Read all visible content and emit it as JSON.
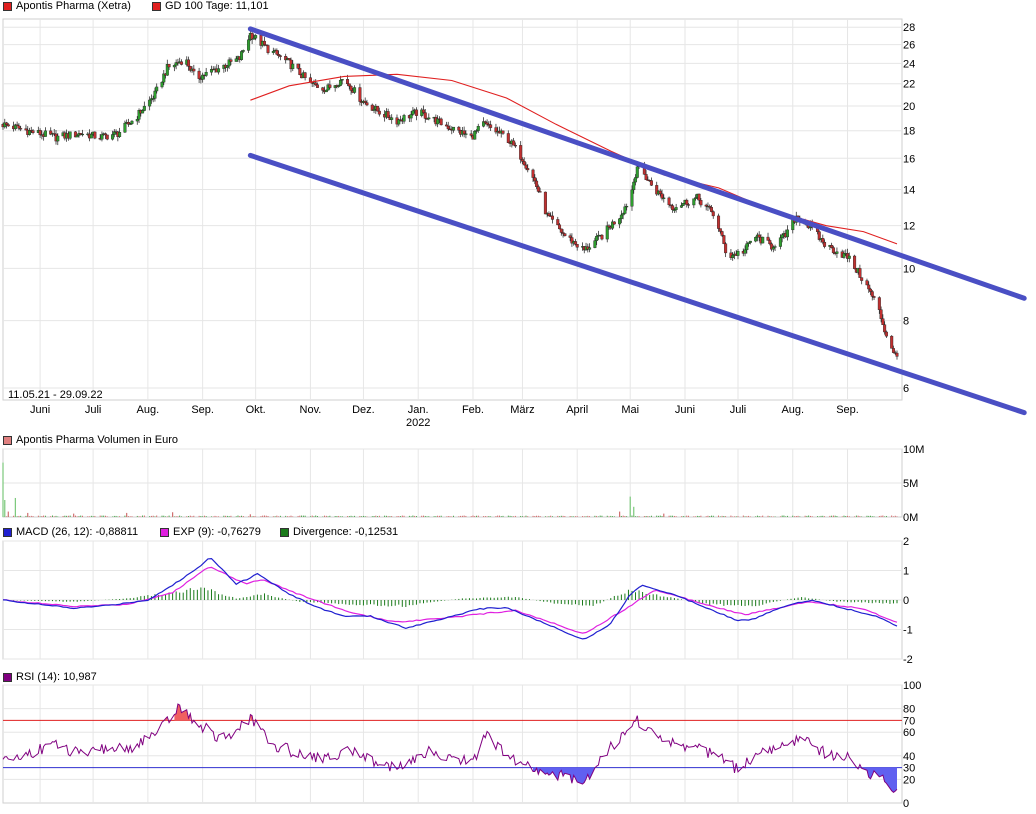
{
  "chart_data": [
    {
      "type": "candlestick",
      "panel": "price",
      "legend": [
        {
          "name": "Apontis Pharma (Xetra)",
          "color": "#e02020"
        },
        {
          "name": "GD 100 Tage: 11,101",
          "color": "#e02020"
        }
      ],
      "date_range_label": "11.05.21 - 29.09.22",
      "x_labels": [
        "Juni",
        "Juli",
        "Aug.",
        "Sep.",
        "Okt.",
        "Nov.",
        "Dez.",
        "Jan.",
        "Feb.",
        "März",
        "April",
        "Mai",
        "Juni",
        "Juli",
        "Aug.",
        "Sep."
      ],
      "year_label": "2022",
      "y_scale": "log",
      "y_ticks": [
        28,
        26,
        24,
        22,
        20,
        18,
        16,
        14,
        12,
        10,
        8,
        6
      ],
      "ylim": [
        5.7,
        29
      ],
      "close_path": [
        [
          "2021-05-11",
          18.5
        ],
        [
          "2021-05-25",
          18.0
        ],
        [
          "2021-06-10",
          17.5
        ],
        [
          "2021-06-25",
          17.8
        ],
        [
          "2021-07-05",
          17.5
        ],
        [
          "2021-07-15",
          17.8
        ],
        [
          "2021-07-25",
          19.0
        ],
        [
          "2021-08-05",
          21.0
        ],
        [
          "2021-08-12",
          23.5
        ],
        [
          "2021-08-22",
          24.5
        ],
        [
          "2021-08-28",
          22.5
        ],
        [
          "2021-09-10",
          23.5
        ],
        [
          "2021-09-22",
          24.5
        ],
        [
          "2021-09-28",
          27.2
        ],
        [
          "2021-10-08",
          25.5
        ],
        [
          "2021-10-20",
          24.0
        ],
        [
          "2021-11-01",
          22.0
        ],
        [
          "2021-11-10",
          21.5
        ],
        [
          "2021-11-20",
          22.5
        ],
        [
          "2021-11-30",
          20.5
        ],
        [
          "2021-12-10",
          19.5
        ],
        [
          "2021-12-20",
          18.8
        ],
        [
          "2022-01-01",
          19.5
        ],
        [
          "2022-01-15",
          18.5
        ],
        [
          "2022-01-31",
          17.5
        ],
        [
          "2022-02-07",
          18.5
        ],
        [
          "2022-02-20",
          17.5
        ],
        [
          "2022-03-01",
          16.0
        ],
        [
          "2022-03-08",
          14.5
        ],
        [
          "2022-03-15",
          12.5
        ],
        [
          "2022-03-25",
          11.5
        ],
        [
          "2022-04-05",
          10.8
        ],
        [
          "2022-04-15",
          11.5
        ],
        [
          "2022-04-25",
          12.5
        ],
        [
          "2022-05-01",
          13.5
        ],
        [
          "2022-05-05",
          15.5
        ],
        [
          "2022-05-15",
          14.0
        ],
        [
          "2022-05-25",
          13.0
        ],
        [
          "2022-06-08",
          13.5
        ],
        [
          "2022-06-18",
          12.5
        ],
        [
          "2022-06-25",
          10.5
        ],
        [
          "2022-07-05",
          10.8
        ],
        [
          "2022-07-10",
          11.5
        ],
        [
          "2022-07-20",
          11.0
        ],
        [
          "2022-07-28",
          11.5
        ],
        [
          "2022-08-03",
          12.5
        ],
        [
          "2022-08-10",
          12.0
        ],
        [
          "2022-08-20",
          11.0
        ],
        [
          "2022-09-01",
          10.5
        ],
        [
          "2022-09-10",
          9.5
        ],
        [
          "2022-09-18",
          8.5
        ],
        [
          "2022-09-23",
          7.5
        ],
        [
          "2022-09-29",
          6.8
        ]
      ],
      "gd100_path": [
        [
          "2021-09-28",
          20.5
        ],
        [
          "2021-10-20",
          21.8
        ],
        [
          "2021-11-20",
          22.7
        ],
        [
          "2021-12-20",
          22.9
        ],
        [
          "2022-01-20",
          22.3
        ],
        [
          "2022-02-20",
          20.7
        ],
        [
          "2022-03-20",
          18.5
        ],
        [
          "2022-04-20",
          16.5
        ],
        [
          "2022-05-20",
          14.9
        ],
        [
          "2022-06-20",
          14.1
        ],
        [
          "2022-07-20",
          12.8
        ],
        [
          "2022-08-20",
          12.0
        ],
        [
          "2022-09-10",
          11.7
        ],
        [
          "2022-09-29",
          11.1
        ]
      ],
      "trend_channel": [
        {
          "from": [
            "2021-09-28",
            27.8
          ],
          "to": [
            "2022-12-10",
            8.8
          ]
        },
        {
          "from": [
            "2021-09-28",
            16.2
          ],
          "to": [
            "2022-12-10",
            5.4
          ]
        }
      ]
    },
    {
      "type": "bar",
      "panel": "volume",
      "legend": [
        {
          "name": "Apontis Pharma Volumen in Euro",
          "color": "#e08080"
        }
      ],
      "y_ticks": [
        "10M",
        "5M",
        "0M"
      ],
      "ylim": [
        0,
        10000000
      ],
      "spikes": [
        [
          "2021-05-11",
          8000000
        ],
        [
          "2021-05-12",
          2500000
        ],
        [
          "2021-05-14",
          800000
        ],
        [
          "2021-05-18",
          2800000
        ],
        [
          "2021-05-25",
          600000
        ],
        [
          "2021-06-20",
          500000
        ],
        [
          "2021-07-20",
          600000
        ],
        [
          "2021-08-15",
          700000
        ],
        [
          "2021-09-28",
          400000
        ],
        [
          "2022-04-25",
          800000
        ],
        [
          "2022-05-01",
          3000000
        ],
        [
          "2022-05-03",
          1500000
        ],
        [
          "2022-05-20",
          500000
        ]
      ],
      "baseline_volume": 150000
    },
    {
      "type": "line",
      "panel": "macd",
      "legend": [
        {
          "name": "MACD (26, 12): -0,88811",
          "color": "#2020d0"
        },
        {
          "name": "EXP (9): -0,76279",
          "color": "#e020e0"
        },
        {
          "name": "Divergence: -0,12531",
          "color": "#1a7a1a"
        }
      ],
      "y_ticks": [
        2,
        1,
        0,
        -1,
        -2
      ],
      "ylim": [
        -2,
        2
      ],
      "macd_path": [
        [
          "2021-05-11",
          0.0
        ],
        [
          "2021-06-01",
          -0.15
        ],
        [
          "2021-06-20",
          -0.28
        ],
        [
          "2021-07-10",
          -0.18
        ],
        [
          "2021-08-01",
          0.0
        ],
        [
          "2021-08-15",
          0.5
        ],
        [
          "2021-09-01",
          1.2
        ],
        [
          "2021-09-05",
          1.48
        ],
        [
          "2021-09-20",
          0.55
        ],
        [
          "2021-09-28",
          0.75
        ],
        [
          "2021-10-02",
          0.9
        ],
        [
          "2021-10-20",
          0.2
        ],
        [
          "2021-11-05",
          -0.25
        ],
        [
          "2021-11-20",
          -0.55
        ],
        [
          "2021-12-05",
          -0.55
        ],
        [
          "2021-12-25",
          -0.95
        ],
        [
          "2022-01-20",
          -0.55
        ],
        [
          "2022-02-05",
          -0.3
        ],
        [
          "2022-02-20",
          -0.25
        ],
        [
          "2022-03-10",
          -0.7
        ],
        [
          "2022-04-05",
          -1.35
        ],
        [
          "2022-04-20",
          -0.8
        ],
        [
          "2022-05-01",
          0.2
        ],
        [
          "2022-05-08",
          0.5
        ],
        [
          "2022-05-25",
          0.2
        ],
        [
          "2022-06-15",
          -0.3
        ],
        [
          "2022-07-01",
          -0.7
        ],
        [
          "2022-07-10",
          -0.65
        ],
        [
          "2022-07-25",
          -0.25
        ],
        [
          "2022-08-05",
          -0.08
        ],
        [
          "2022-08-12",
          0.0
        ],
        [
          "2022-08-25",
          -0.2
        ],
        [
          "2022-09-10",
          -0.45
        ],
        [
          "2022-09-20",
          -0.6
        ],
        [
          "2022-09-29",
          -0.89
        ]
      ],
      "exp_path": [
        [
          "2021-05-11",
          0.0
        ],
        [
          "2021-06-20",
          -0.22
        ],
        [
          "2021-07-20",
          -0.15
        ],
        [
          "2021-08-15",
          0.25
        ],
        [
          "2021-09-05",
          1.15
        ],
        [
          "2021-09-25",
          0.55
        ],
        [
          "2021-10-05",
          0.7
        ],
        [
          "2021-10-25",
          0.2
        ],
        [
          "2021-11-25",
          -0.45
        ],
        [
          "2021-12-20",
          -0.75
        ],
        [
          "2022-01-25",
          -0.55
        ],
        [
          "2022-02-25",
          -0.35
        ],
        [
          "2022-04-05",
          -1.15
        ],
        [
          "2022-05-01",
          -0.2
        ],
        [
          "2022-05-15",
          0.35
        ],
        [
          "2022-06-10",
          -0.1
        ],
        [
          "2022-07-05",
          -0.5
        ],
        [
          "2022-08-10",
          -0.05
        ],
        [
          "2022-09-10",
          -0.3
        ],
        [
          "2022-09-29",
          -0.76
        ]
      ],
      "divergence_path": [
        [
          "2021-05-11",
          0.0
        ],
        [
          "2021-06-20",
          -0.06
        ],
        [
          "2021-07-20",
          0.05
        ],
        [
          "2021-08-15",
          0.25
        ],
        [
          "2021-09-01",
          0.4
        ],
        [
          "2021-09-20",
          0.05
        ],
        [
          "2021-10-05",
          0.2
        ],
        [
          "2021-10-25",
          -0.05
        ],
        [
          "2021-11-25",
          -0.15
        ],
        [
          "2021-12-25",
          -0.2
        ],
        [
          "2022-01-25",
          0.05
        ],
        [
          "2022-02-25",
          0.1
        ],
        [
          "2022-03-20",
          -0.12
        ],
        [
          "2022-04-10",
          -0.2
        ],
        [
          "2022-05-01",
          0.35
        ],
        [
          "2022-05-15",
          0.18
        ],
        [
          "2022-06-15",
          -0.15
        ],
        [
          "2022-07-10",
          -0.2
        ],
        [
          "2022-08-05",
          0.1
        ],
        [
          "2022-08-25",
          -0.05
        ],
        [
          "2022-09-29",
          -0.13
        ]
      ]
    },
    {
      "type": "line",
      "panel": "rsi",
      "legend": [
        {
          "name": "RSI (14): 10,987",
          "color": "#800080"
        }
      ],
      "y_ticks": [
        100,
        80,
        70,
        60,
        40,
        30,
        20,
        0
      ],
      "ylim": [
        0,
        100
      ],
      "overbought": 70,
      "oversold": 30,
      "rsi_path": [
        [
          "2021-05-11",
          35
        ],
        [
          "2021-05-25",
          42
        ],
        [
          "2021-06-10",
          50
        ],
        [
          "2021-06-25",
          40
        ],
        [
          "2021-07-10",
          47
        ],
        [
          "2021-07-20",
          45
        ],
        [
          "2021-08-01",
          55
        ],
        [
          "2021-08-10",
          65
        ],
        [
          "2021-08-15",
          75
        ],
        [
          "2021-08-18",
          82
        ],
        [
          "2021-08-25",
          72
        ],
        [
          "2021-09-01",
          65
        ],
        [
          "2021-09-10",
          55
        ],
        [
          "2021-09-20",
          60
        ],
        [
          "2021-09-28",
          72
        ],
        [
          "2021-10-10",
          50
        ],
        [
          "2021-10-25",
          42
        ],
        [
          "2021-11-10",
          38
        ],
        [
          "2021-11-25",
          45
        ],
        [
          "2021-12-10",
          33
        ],
        [
          "2021-12-25",
          30
        ],
        [
          "2022-01-08",
          45
        ],
        [
          "2022-01-20",
          38
        ],
        [
          "2022-02-01",
          35
        ],
        [
          "2022-02-08",
          58
        ],
        [
          "2022-02-20",
          40
        ],
        [
          "2022-03-01",
          32
        ],
        [
          "2022-03-15",
          25
        ],
        [
          "2022-03-28",
          22
        ],
        [
          "2022-04-05",
          18
        ],
        [
          "2022-04-15",
          40
        ],
        [
          "2022-04-25",
          55
        ],
        [
          "2022-05-05",
          70
        ],
        [
          "2022-05-20",
          52
        ],
        [
          "2022-06-05",
          48
        ],
        [
          "2022-06-20",
          40
        ],
        [
          "2022-07-01",
          28
        ],
        [
          "2022-07-10",
          40
        ],
        [
          "2022-07-25",
          48
        ],
        [
          "2022-08-05",
          55
        ],
        [
          "2022-08-20",
          42
        ],
        [
          "2022-09-01",
          38
        ],
        [
          "2022-09-10",
          28
        ],
        [
          "2022-09-20",
          20
        ],
        [
          "2022-09-29",
          11
        ]
      ]
    }
  ]
}
